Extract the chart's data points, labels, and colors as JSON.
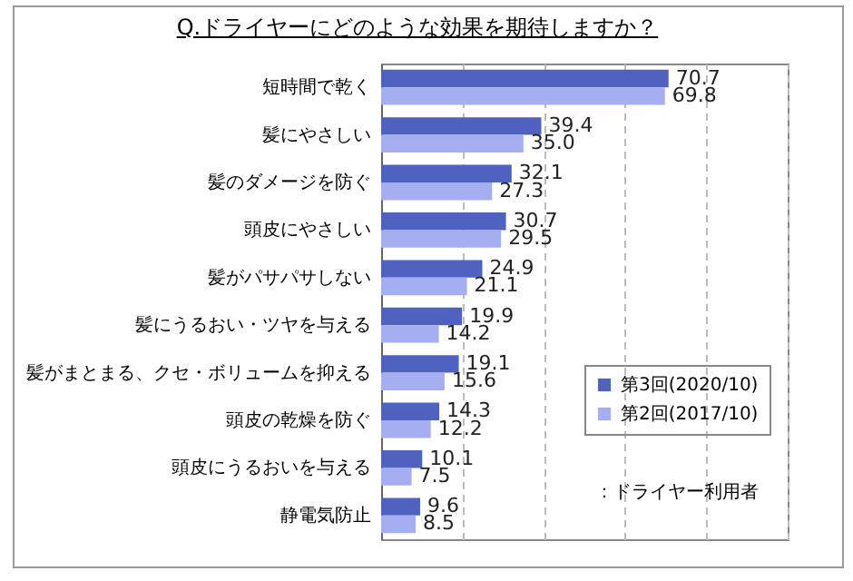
{
  "chart_data": {
    "type": "bar",
    "orientation": "horizontal",
    "title": "Q.ドライヤーにどのような効果を期待しますか？",
    "categories": [
      "短時間で乾く",
      "髪にやさしい",
      "髪のダメージを防ぐ",
      "頭皮にやさしい",
      "髪がパサパサしない",
      "髪にうるおい・ツヤを与える",
      "髪がまとまる、クセ・ボリュームを抑える",
      "頭皮の乾燥を防ぐ",
      "頭皮にうるおいを与える",
      "静電気防止"
    ],
    "series": [
      {
        "name": "第3回(2020/10)",
        "color": "#5062bf",
        "values": [
          70.7,
          39.4,
          32.1,
          30.7,
          24.9,
          19.9,
          19.1,
          14.3,
          10.1,
          9.6
        ],
        "value_labels": [
          "70.7",
          "39.4",
          "32.1",
          "30.7",
          "24.9",
          "19.9",
          "19.1",
          "14.3",
          "10.1",
          "9.6"
        ]
      },
      {
        "name": "第2回(2017/10)",
        "color": "#a4aef0",
        "values": [
          69.8,
          35.0,
          27.3,
          29.5,
          21.1,
          14.2,
          15.6,
          12.2,
          7.5,
          8.5
        ],
        "value_labels": [
          "69.8",
          "35.0",
          "27.3",
          "29.5",
          "21.1",
          "14.2",
          "15.6",
          "12.2",
          "7.5",
          "8.5"
        ]
      }
    ],
    "xlim": [
      0,
      100
    ],
    "xticks": [
      {
        "value": 0,
        "label": null
      },
      {
        "value": 20,
        "label": null
      },
      {
        "value": 40,
        "label": null
      },
      {
        "value": 60,
        "label": null
      },
      {
        "value": 80,
        "label": null
      },
      {
        "value": 100,
        "label": null
      }
    ],
    "tick_labels": "y",
    "grid": "x",
    "legend": "bottom right",
    "annotations": [
      "：ドライヤー利用者"
    ]
  }
}
